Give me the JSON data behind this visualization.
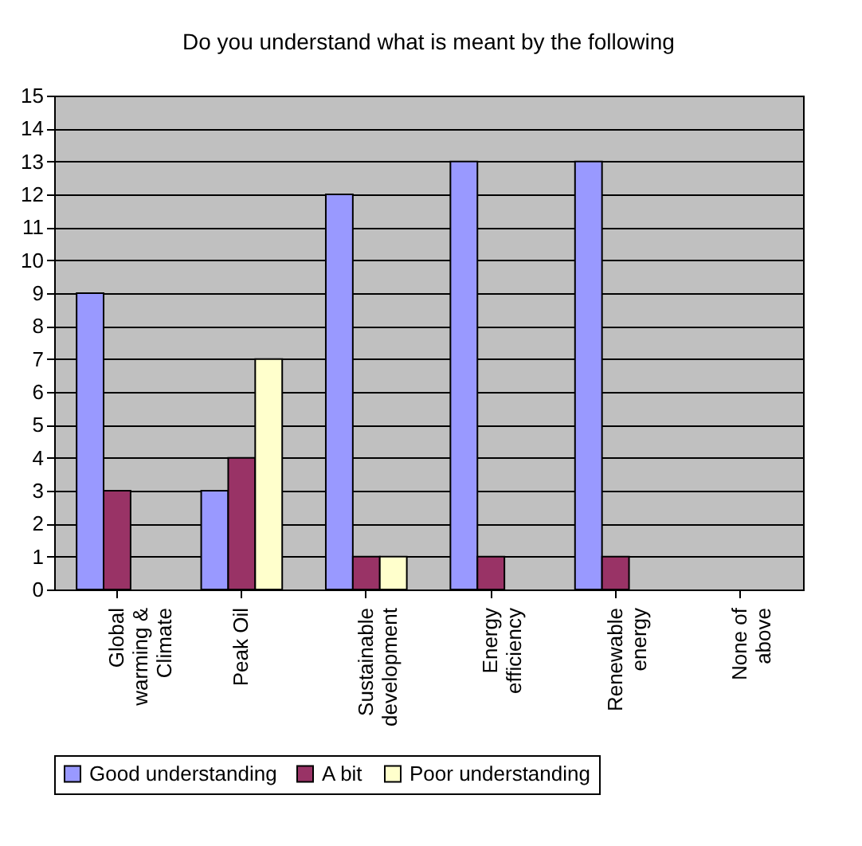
{
  "chart_data": {
    "type": "bar",
    "title": "Do you understand what is meant by the following",
    "categories": [
      "Global warming & Climate",
      "Peak Oil",
      "Sustainable development",
      "Energy efficiency",
      "Renewable energy",
      "None of above"
    ],
    "series": [
      {
        "name": "Good understanding",
        "color": "#9999ff",
        "values": [
          9,
          3,
          12,
          13,
          13,
          0
        ]
      },
      {
        "name": "A bit",
        "color": "#993366",
        "values": [
          3,
          4,
          1,
          1,
          1,
          0
        ]
      },
      {
        "name": "Poor understanding",
        "color": "#ffffcc",
        "values": [
          0,
          7,
          1,
          0,
          0,
          0
        ]
      }
    ],
    "ylim": [
      0,
      15
    ],
    "yticks": [
      0,
      1,
      2,
      3,
      4,
      5,
      6,
      7,
      8,
      9,
      10,
      11,
      12,
      13,
      14,
      15
    ],
    "grid": "y",
    "legend": "bottom"
  }
}
